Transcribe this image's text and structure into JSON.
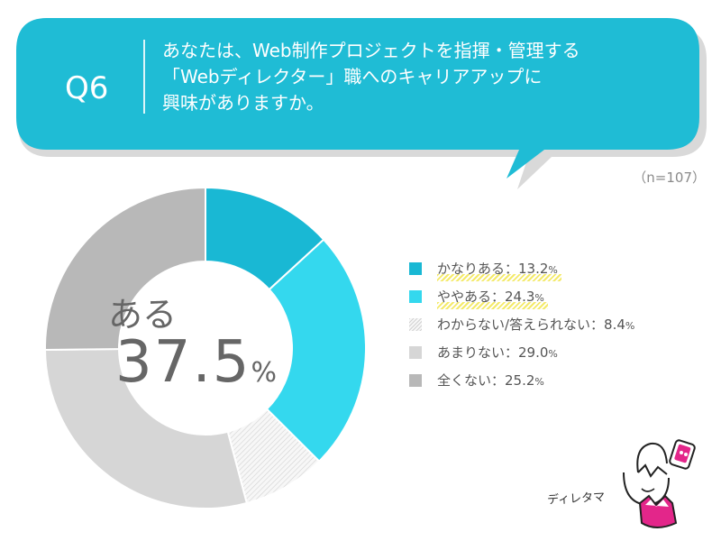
{
  "question": {
    "number": "Q6",
    "lines": [
      "あなたは、Web制作プロジェクトを指揮・管理する",
      "「Webディレクター」職へのキャリアアップに",
      "興味がありますか。"
    ]
  },
  "sample_size": "（n=107）",
  "center": {
    "label": "ある",
    "value": "37.5",
    "unit": "%"
  },
  "chart_data": {
    "type": "pie",
    "title": "",
    "total": 100,
    "start_angle_deg": 0,
    "direction": "clockwise",
    "slices": [
      {
        "name": "かなりある",
        "value": 13.2,
        "color": "#19b8d4",
        "pattern": "solid",
        "highlight": true
      },
      {
        "name": "ややある",
        "value": 24.3,
        "color": "#34d8ee",
        "pattern": "solid",
        "highlight": true
      },
      {
        "name": "わからない/答えられない",
        "value": 8.4,
        "color": "#e8e8e8",
        "pattern": "hatched",
        "highlight": false
      },
      {
        "name": "あまりない",
        "value": 29.0,
        "color": "#d6d6d6",
        "pattern": "solid",
        "highlight": false
      },
      {
        "name": "全くない",
        "value": 25.2,
        "color": "#b8b8b8",
        "pattern": "solid",
        "highlight": false
      }
    ]
  },
  "legend": [
    {
      "text": "かなりある：13.2",
      "unit": "%"
    },
    {
      "text": "ややある：24.3",
      "unit": "%"
    },
    {
      "text": "わからない/答えられない：8.4",
      "unit": "%"
    },
    {
      "text": "あまりない：29.0",
      "unit": "%"
    },
    {
      "text": "全くない：25.2",
      "unit": "%"
    }
  ],
  "mascot": {
    "name": "ディレタマ"
  },
  "colors": {
    "bubble": "#1fbcd5",
    "shadow": "#d9d9d9",
    "accent_pink": "#e3268a"
  }
}
